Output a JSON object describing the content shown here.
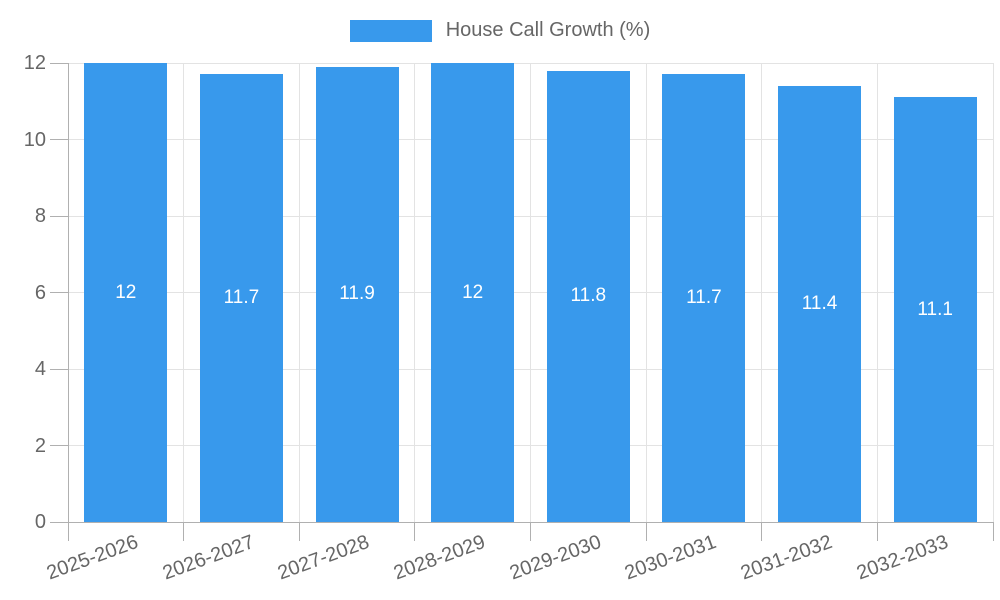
{
  "legend": {
    "label": "House Call Growth (%)"
  },
  "colors": {
    "bar": "#3899ec",
    "grid": "#e3e3e3",
    "axis": "#b0b0b0",
    "tick_text": "#666666",
    "bar_label_text": "#ffffff"
  },
  "chart_data": {
    "type": "bar",
    "title": "House Call Growth (%)",
    "categories": [
      "2025-2026",
      "2026-2027",
      "2027-2028",
      "2028-2029",
      "2029-2030",
      "2030-2031",
      "2031-2032",
      "2032-2033"
    ],
    "values": [
      12,
      11.7,
      11.9,
      12,
      11.8,
      11.7,
      11.4,
      11.1
    ],
    "bar_labels": [
      "12",
      "11.7",
      "11.9",
      "12",
      "11.8",
      "11.7",
      "11.4",
      "11.1"
    ],
    "yticks": [
      0,
      2,
      4,
      6,
      8,
      10,
      12
    ],
    "ylim": [
      0,
      12
    ],
    "xlabel": "",
    "ylabel": "",
    "grid": true,
    "legend_position": "top",
    "x_tick_rotation_deg": -20
  }
}
